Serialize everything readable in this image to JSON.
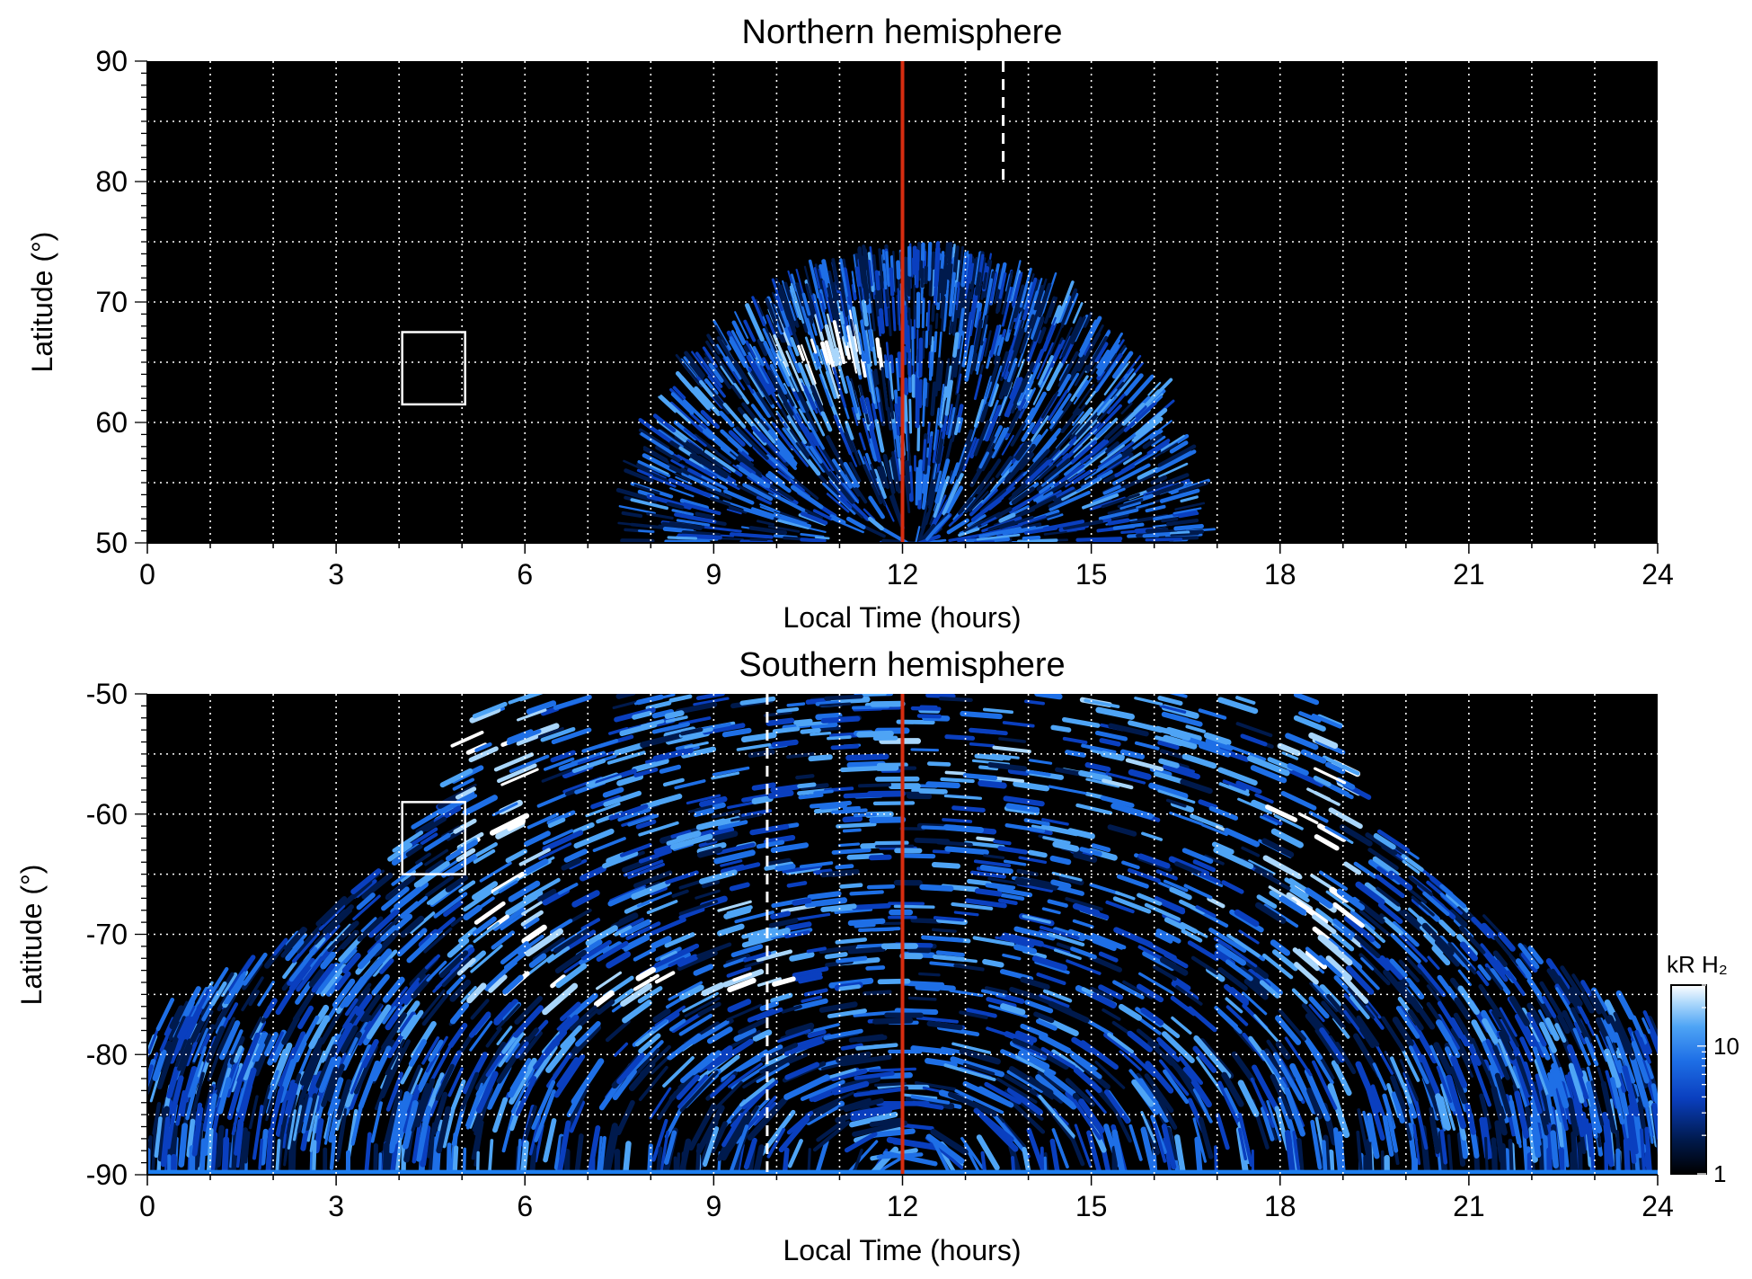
{
  "colors": {
    "background": "#000000",
    "grid": "#ffffff",
    "noon_line": "#d62c10",
    "colormap": [
      "#000000",
      "#001a4d",
      "#0a3fbf",
      "#1e6fe6",
      "#4ea4f5",
      "#a9d6fb",
      "#ffffff"
    ]
  },
  "chart_data": [
    {
      "type": "heatmap",
      "title": "Northern hemisphere",
      "xlabel": "Local Time (hours)",
      "ylabel": "Latitude (°)",
      "xlim": [
        0,
        24
      ],
      "ylim": [
        50,
        90
      ],
      "xticks": [
        0,
        3,
        6,
        9,
        12,
        15,
        18,
        21,
        24
      ],
      "yticks": [
        50,
        60,
        70,
        80,
        90
      ],
      "grid": true,
      "emission_region": {
        "description_units": "local time hours / latitude degrees",
        "lt_range_at_50": [
          7.6,
          16.7
        ],
        "max_latitude": 73.5,
        "center_lt": 12.2,
        "bright_spot": {
          "lt": 10.8,
          "lat": 65.5
        }
      },
      "noon_line_lt": 12,
      "dashed_line": {
        "lt": 13.6,
        "lat_range": [
          80,
          90
        ]
      },
      "box": {
        "lt_range": [
          4.05,
          5.05
        ],
        "lat_range": [
          61.5,
          67.5
        ]
      }
    },
    {
      "type": "heatmap",
      "title": "Southern hemisphere",
      "xlabel": "Local Time (hours)",
      "ylabel": "Latitude (°)",
      "xlim": [
        0,
        24
      ],
      "ylim": [
        -90,
        -50
      ],
      "xticks": [
        0,
        3,
        6,
        9,
        12,
        15,
        18,
        21,
        24
      ],
      "yticks": [
        -50,
        -60,
        -70,
        -80,
        -90
      ],
      "grid": true,
      "emission_region": {
        "description_units": "local time hours / latitude degrees",
        "lt_range_at_minus50": [
          5.1,
          18.8
        ],
        "edge_latitude_at_lt0_lt24": -77,
        "bright_arc_lat": -74.5
      },
      "noon_line_lt": 12,
      "dashed_line": {
        "lt": 9.85,
        "lat_range": [
          -90,
          -50
        ]
      },
      "box": {
        "lt_range": [
          4.05,
          5.05
        ],
        "lat_range": [
          -65,
          -59
        ]
      }
    }
  ],
  "colorbar": {
    "label": "kR H₂",
    "scale": "log",
    "range": [
      1,
      30
    ],
    "tick_labels": [
      "1",
      "10"
    ],
    "tick_values": [
      1,
      10
    ]
  }
}
